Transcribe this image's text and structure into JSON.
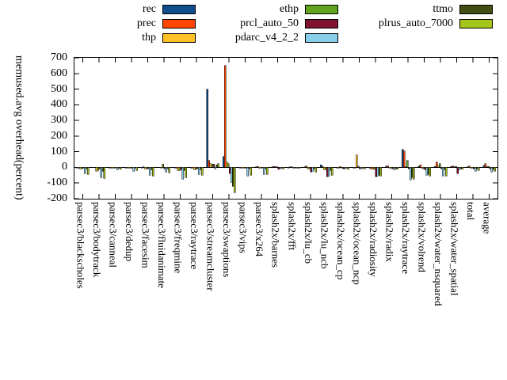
{
  "legend": {
    "items": [
      {
        "label": "rec",
        "color": "#104e8b"
      },
      {
        "label": "prec",
        "color": "#ff4500"
      },
      {
        "label": "thp",
        "color": "#ffc125"
      },
      {
        "label": "ethp",
        "color": "#61a51f"
      },
      {
        "label": "prcl_auto_50",
        "color": "#801430"
      },
      {
        "label": "pdarc_v4_2_2",
        "color": "#87ceeb"
      },
      {
        "label": "ttmo",
        "color": "#414f12"
      },
      {
        "label": "plrus_auto_7000",
        "color": "#a4c519"
      }
    ]
  },
  "chart_data": {
    "type": "bar",
    "title": "",
    "xlabel": "",
    "ylabel_lines": [
      "memused.avg overhead",
      "(percent)"
    ],
    "ylim": [
      -200,
      700
    ],
    "yticks": [
      700,
      600,
      500,
      400,
      300,
      200,
      100,
      0,
      -100,
      -200
    ],
    "grid": false,
    "legend_position": "top",
    "categories": [
      "parsec3/blackscholes",
      "parsec3/bodytrack",
      "parsec3/canneal",
      "parsec3/dedup",
      "parsec3/facesim",
      "parsec3/fluidanimate",
      "parsec3/freqmine",
      "parsec3/raytrace",
      "parsec3/streamcluster",
      "parsec3/swaptions",
      "parsec3/vips",
      "parsec3/x264",
      "splash2x/barnes",
      "splash2x/fft",
      "splash2x/lu_cb",
      "splash2x/lu_ncb",
      "splash2x/ocean_cp",
      "splash2x/ocean_ncp",
      "splash2x/radiosity",
      "splash2x/radix",
      "splash2x/raytrace",
      "splash2x/volrend",
      "splash2x/water_nsquared",
      "splash2x/water_spatial",
      "total",
      "average"
    ],
    "series": [
      {
        "name": "rec",
        "color": "#104e8b",
        "values": [
          -2,
          2,
          -3,
          -2,
          -2,
          2,
          -3,
          -2,
          500,
          70,
          -2,
          3,
          3,
          -2,
          3,
          15,
          -3,
          -5,
          -3,
          8,
          115,
          5,
          5,
          5,
          3,
          10
        ]
      },
      {
        "name": "prec",
        "color": "#ff4500",
        "values": [
          -2,
          2,
          -3,
          -2,
          3,
          2,
          -3,
          -2,
          45,
          650,
          -2,
          5,
          5,
          3,
          8,
          5,
          -3,
          -5,
          -8,
          8,
          105,
          15,
          35,
          8,
          8,
          25
        ]
      },
      {
        "name": "thp",
        "color": "#ffc125",
        "values": [
          -8,
          -25,
          -5,
          -3,
          -10,
          -5,
          -20,
          -15,
          25,
          35,
          -5,
          -5,
          3,
          3,
          -8,
          -15,
          5,
          80,
          -12,
          -3,
          5,
          -5,
          10,
          3,
          -5,
          5
        ]
      },
      {
        "name": "ethp",
        "color": "#61a51f",
        "values": [
          -8,
          -20,
          -5,
          -3,
          -10,
          20,
          -20,
          -12,
          20,
          25,
          -5,
          -5,
          3,
          -3,
          -8,
          -15,
          -5,
          8,
          -12,
          -5,
          45,
          -10,
          25,
          5,
          -5,
          5
        ]
      },
      {
        "name": "prcl_auto_50",
        "color": "#801430",
        "values": [
          -5,
          -10,
          -3,
          -5,
          -8,
          -8,
          -15,
          -10,
          20,
          -40,
          -5,
          -5,
          -12,
          -5,
          -30,
          -60,
          -8,
          -8,
          -60,
          -10,
          -10,
          -15,
          -10,
          -40,
          -10,
          -10
        ]
      },
      {
        "name": "pdarc_v4_2_2",
        "color": "#87ceeb",
        "values": [
          -40,
          -65,
          -15,
          -25,
          -50,
          -30,
          -75,
          -45,
          -10,
          -95,
          -55,
          -45,
          -8,
          -5,
          -25,
          -55,
          -10,
          -10,
          -55,
          -15,
          -80,
          -50,
          -55,
          -15,
          -25,
          -30
        ]
      },
      {
        "name": "ttmo",
        "color": "#414f12",
        "values": [
          -8,
          -25,
          -5,
          -5,
          -15,
          -10,
          -20,
          -15,
          15,
          -120,
          -10,
          -8,
          -5,
          -3,
          -10,
          -20,
          -5,
          -5,
          -50,
          -8,
          -65,
          -45,
          -15,
          -8,
          -8,
          -15
        ]
      },
      {
        "name": "plrus_auto_7000",
        "color": "#a4c519",
        "values": [
          -45,
          -70,
          -12,
          -20,
          -55,
          -35,
          -65,
          -50,
          25,
          -160,
          -50,
          -45,
          -8,
          -5,
          -30,
          -50,
          -12,
          -10,
          -55,
          -12,
          -75,
          -55,
          -55,
          -12,
          -20,
          -25
        ]
      }
    ]
  }
}
